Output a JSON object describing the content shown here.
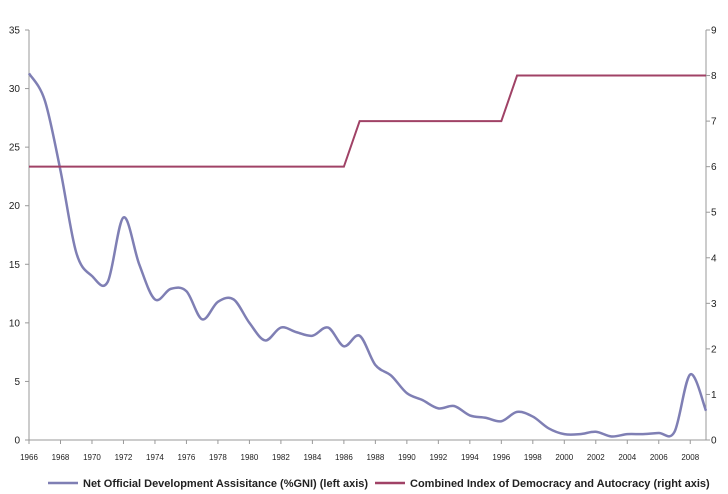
{
  "chart_data": {
    "type": "line",
    "x": [
      1966,
      1967,
      1968,
      1969,
      1970,
      1971,
      1972,
      1973,
      1974,
      1975,
      1976,
      1977,
      1978,
      1979,
      1980,
      1981,
      1982,
      1983,
      1984,
      1985,
      1986,
      1987,
      1988,
      1989,
      1990,
      1991,
      1992,
      1993,
      1994,
      1995,
      1996,
      1997,
      1998,
      1999,
      2000,
      2001,
      2002,
      2003,
      2004,
      2005,
      2006,
      2007,
      2008,
      2009
    ],
    "x_ticks": [
      1966,
      1968,
      1970,
      1972,
      1974,
      1976,
      1978,
      1980,
      1982,
      1984,
      1986,
      1988,
      1990,
      1992,
      1994,
      1996,
      1998,
      2000,
      2002,
      2004,
      2006,
      2008
    ],
    "xlim": [
      1966,
      2009
    ],
    "y_left": {
      "lim": [
        0,
        35
      ],
      "ticks": [
        0,
        5,
        10,
        15,
        20,
        25,
        30,
        35
      ]
    },
    "y_right": {
      "lim": [
        0,
        9
      ],
      "ticks": [
        0,
        1,
        2,
        3,
        4,
        5,
        6,
        7,
        8,
        9
      ]
    },
    "series": [
      {
        "name": "Net Official Development Assisitance (%GNI) (left axis)",
        "axis": "left",
        "color": "#7f7fb4",
        "values": [
          31.3,
          29.0,
          23.0,
          16.0,
          14.0,
          13.5,
          19.0,
          15.0,
          12.0,
          12.9,
          12.7,
          10.3,
          11.8,
          12.0,
          10.0,
          8.5,
          9.6,
          9.2,
          8.9,
          9.6,
          8.0,
          8.9,
          6.4,
          5.5,
          4.0,
          3.4,
          2.7,
          2.9,
          2.1,
          1.9,
          1.6,
          2.4,
          2.0,
          1.0,
          0.5,
          0.5,
          0.7,
          0.3,
          0.5,
          0.5,
          0.6,
          0.7,
          5.6,
          2.5
        ]
      },
      {
        "name": "Combined Index of Democracy and Autocracy (right axis)",
        "axis": "right",
        "color": "#a04266",
        "step_points": [
          [
            1966,
            6
          ],
          [
            1986,
            6
          ],
          [
            1987,
            7
          ],
          [
            1996,
            7
          ],
          [
            1997,
            8
          ],
          [
            2009,
            8
          ]
        ]
      }
    ]
  }
}
